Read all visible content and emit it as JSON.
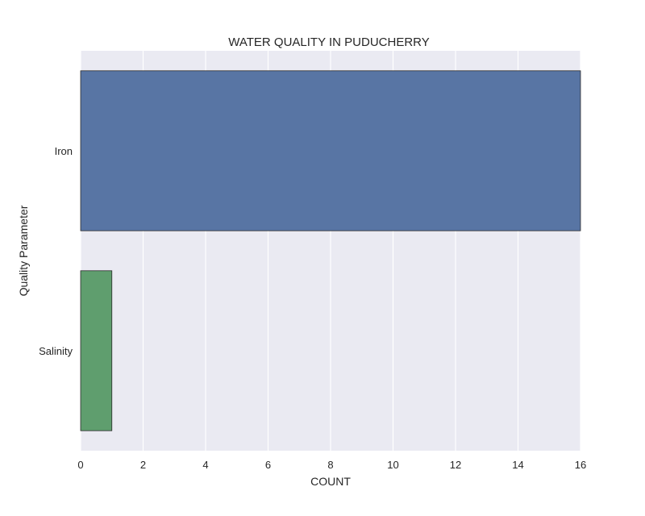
{
  "chart_data": {
    "type": "bar",
    "orientation": "horizontal",
    "title": "WATER QUALITY IN PUDUCHERRY",
    "xlabel": "COUNT",
    "ylabel": "Quality Parameter",
    "categories": [
      "Iron",
      "Salinity"
    ],
    "values": [
      16,
      1
    ],
    "xlim": [
      0,
      16
    ],
    "xticks": [
      "0",
      "2",
      "4",
      "6",
      "8",
      "10",
      "12",
      "14",
      "16"
    ],
    "grid": true,
    "legend": "none",
    "colors": [
      "#5875a4",
      "#5f9e6e"
    ],
    "background": "#eaeaf2",
    "gridline_color": "#ffffff"
  }
}
